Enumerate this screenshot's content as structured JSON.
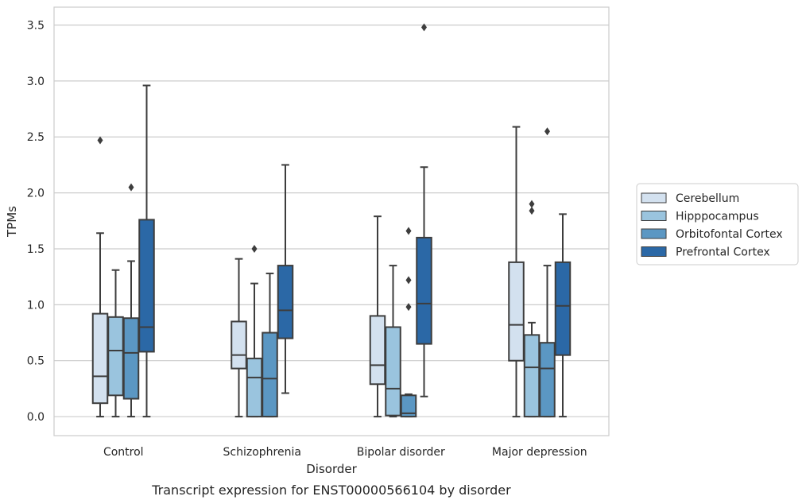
{
  "chart_data": {
    "type": "box",
    "xlabel": "Disorder",
    "ylabel": "TPMs",
    "caption": "Transcript expression for ENST00000566104 by disorder",
    "ylim": [
      -0.17,
      3.66
    ],
    "yticks": [
      "0.0",
      "0.5",
      "1.0",
      "1.5",
      "2.0",
      "2.5",
      "3.0",
      "3.5"
    ],
    "grid": "horizontal",
    "legend_position": "right",
    "categories": [
      "Control",
      "Schizophrenia",
      "Bipolar disorder",
      "Major depression"
    ],
    "series": [
      {
        "name": "Cerebellum",
        "color": "#d3e1ef",
        "boxes": [
          {
            "min": 0.0,
            "q1": 0.12,
            "median": 0.36,
            "q3": 0.92,
            "max": 1.64,
            "outliers": [
              2.47
            ]
          },
          {
            "min": 0.0,
            "q1": 0.43,
            "median": 0.55,
            "q3": 0.85,
            "max": 1.41,
            "outliers": []
          },
          {
            "min": 0.0,
            "q1": 0.29,
            "median": 0.46,
            "q3": 0.9,
            "max": 1.79,
            "outliers": []
          },
          {
            "min": 0.0,
            "q1": 0.5,
            "median": 0.82,
            "q3": 1.38,
            "max": 2.59,
            "outliers": []
          }
        ]
      },
      {
        "name": "Hipppocampus",
        "color": "#9ac4de",
        "boxes": [
          {
            "min": 0.0,
            "q1": 0.19,
            "median": 0.59,
            "q3": 0.89,
            "max": 1.31,
            "outliers": []
          },
          {
            "min": 0.0,
            "q1": 0.0,
            "median": 0.35,
            "q3": 0.52,
            "max": 1.19,
            "outliers": [
              1.5
            ]
          },
          {
            "min": 0.0,
            "q1": 0.01,
            "median": 0.25,
            "q3": 0.8,
            "max": 1.35,
            "outliers": []
          },
          {
            "min": 0.0,
            "q1": 0.0,
            "median": 0.44,
            "q3": 0.73,
            "max": 0.84,
            "outliers": [
              1.84,
              1.9
            ]
          }
        ]
      },
      {
        "name": "Orbitofontal Cortex",
        "color": "#5b97c3",
        "boxes": [
          {
            "min": 0.0,
            "q1": 0.16,
            "median": 0.57,
            "q3": 0.88,
            "max": 1.39,
            "outliers": [
              2.05
            ]
          },
          {
            "min": 0.0,
            "q1": 0.0,
            "median": 0.34,
            "q3": 0.75,
            "max": 1.28,
            "outliers": []
          },
          {
            "min": 0.0,
            "q1": 0.0,
            "median": 0.03,
            "q3": 0.19,
            "max": 0.2,
            "outliers": [
              0.98,
              1.22,
              1.66
            ]
          },
          {
            "min": 0.0,
            "q1": 0.0,
            "median": 0.43,
            "q3": 0.66,
            "max": 1.35,
            "outliers": [
              2.55
            ]
          }
        ]
      },
      {
        "name": "Prefrontal Cortex",
        "color": "#2b68a6",
        "boxes": [
          {
            "min": 0.0,
            "q1": 0.58,
            "median": 0.8,
            "q3": 1.76,
            "max": 2.96,
            "outliers": []
          },
          {
            "min": 0.21,
            "q1": 0.7,
            "median": 0.95,
            "q3": 1.35,
            "max": 2.25,
            "outliers": []
          },
          {
            "min": 0.18,
            "q1": 0.65,
            "median": 1.01,
            "q3": 1.6,
            "max": 2.23,
            "outliers": [
              3.48
            ]
          },
          {
            "min": 0.0,
            "q1": 0.55,
            "median": 0.99,
            "q3": 1.38,
            "max": 1.81,
            "outliers": []
          }
        ]
      }
    ]
  }
}
